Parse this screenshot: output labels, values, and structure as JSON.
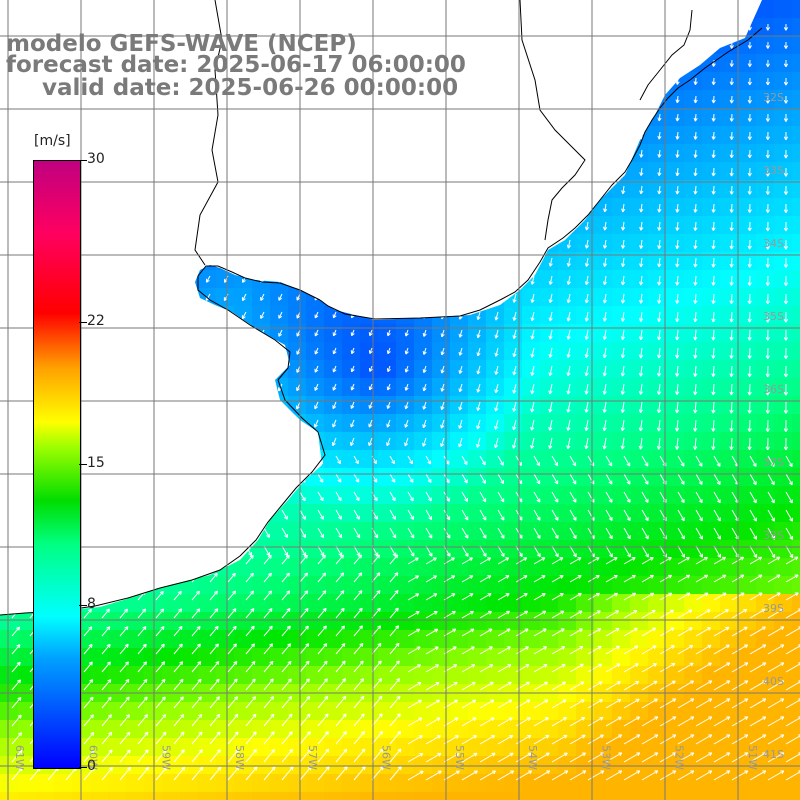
{
  "title": {
    "line1": "modelo GEFS-WAVE (NCEP)",
    "line2": "forecast date: 2025-06-17 06:00:00",
    "line3": "valid date: 2025-06-26 00:00:00"
  },
  "colorbar": {
    "unit": "[m/s]",
    "ticks": [
      "30",
      "22",
      "15",
      "8",
      "0"
    ],
    "range": [
      0,
      30
    ],
    "colors": [
      "#0000ff",
      "#00a0ff",
      "#00ffff",
      "#00ff80",
      "#00dd00",
      "#a0ff00",
      "#ffff00",
      "#ffa000",
      "#ff0000",
      "#c00080"
    ]
  },
  "map": {
    "lat_labels": [
      "32S",
      "33S",
      "34S",
      "35S",
      "36S",
      "37S",
      "38S",
      "39S",
      "40S",
      "41S"
    ],
    "lon_labels": [
      "61W",
      "60W",
      "59W",
      "58W",
      "57W",
      "56W",
      "55W",
      "54W",
      "53W",
      "52W",
      "51W"
    ],
    "colors": {
      "land": "#ffffff",
      "coast": "#000000",
      "grid": "#777777",
      "arrow": "#ffffff",
      "label": "#999999"
    }
  }
}
